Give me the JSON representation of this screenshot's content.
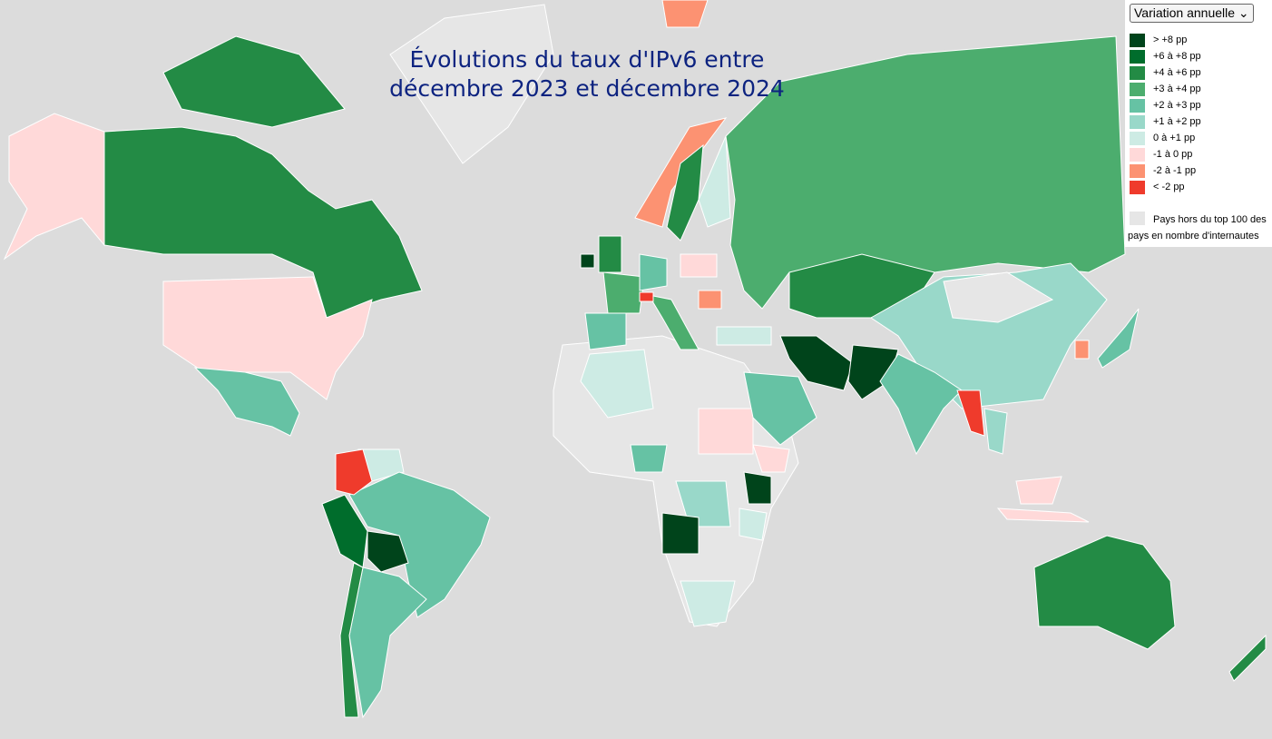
{
  "header": {
    "title_lines": [
      "Évolutions du taux d'IPv6 entre",
      "décembre 2023 et décembre 2024"
    ]
  },
  "control": {
    "label": "Variation annuelle"
  },
  "legend": {
    "items": [
      {
        "label": "> +8 pp",
        "color": "#00441b"
      },
      {
        "label": "+6 à +8 pp",
        "color": "#006d2c"
      },
      {
        "label": "+4 à +6 pp",
        "color": "#238b45"
      },
      {
        "label": "+3 à +4 pp",
        "color": "#4cad6e"
      },
      {
        "label": "+2 à +3 pp",
        "color": "#66c2a4"
      },
      {
        "label": "+1 à +2 pp",
        "color": "#99d8c9"
      },
      {
        "label": "0 à +1 pp",
        "color": "#cdebe4"
      },
      {
        "label": "-1 à 0 pp",
        "color": "#ffd9d9"
      },
      {
        "label": "-2 à -1 pp",
        "color": "#fc9272"
      },
      {
        "label": "< -2 pp",
        "color": "#ef3b2c"
      }
    ],
    "other": {
      "label": "Pays hors du top 100 des pays en nombre d'internautes",
      "color": "#e6e6e6"
    }
  }
}
